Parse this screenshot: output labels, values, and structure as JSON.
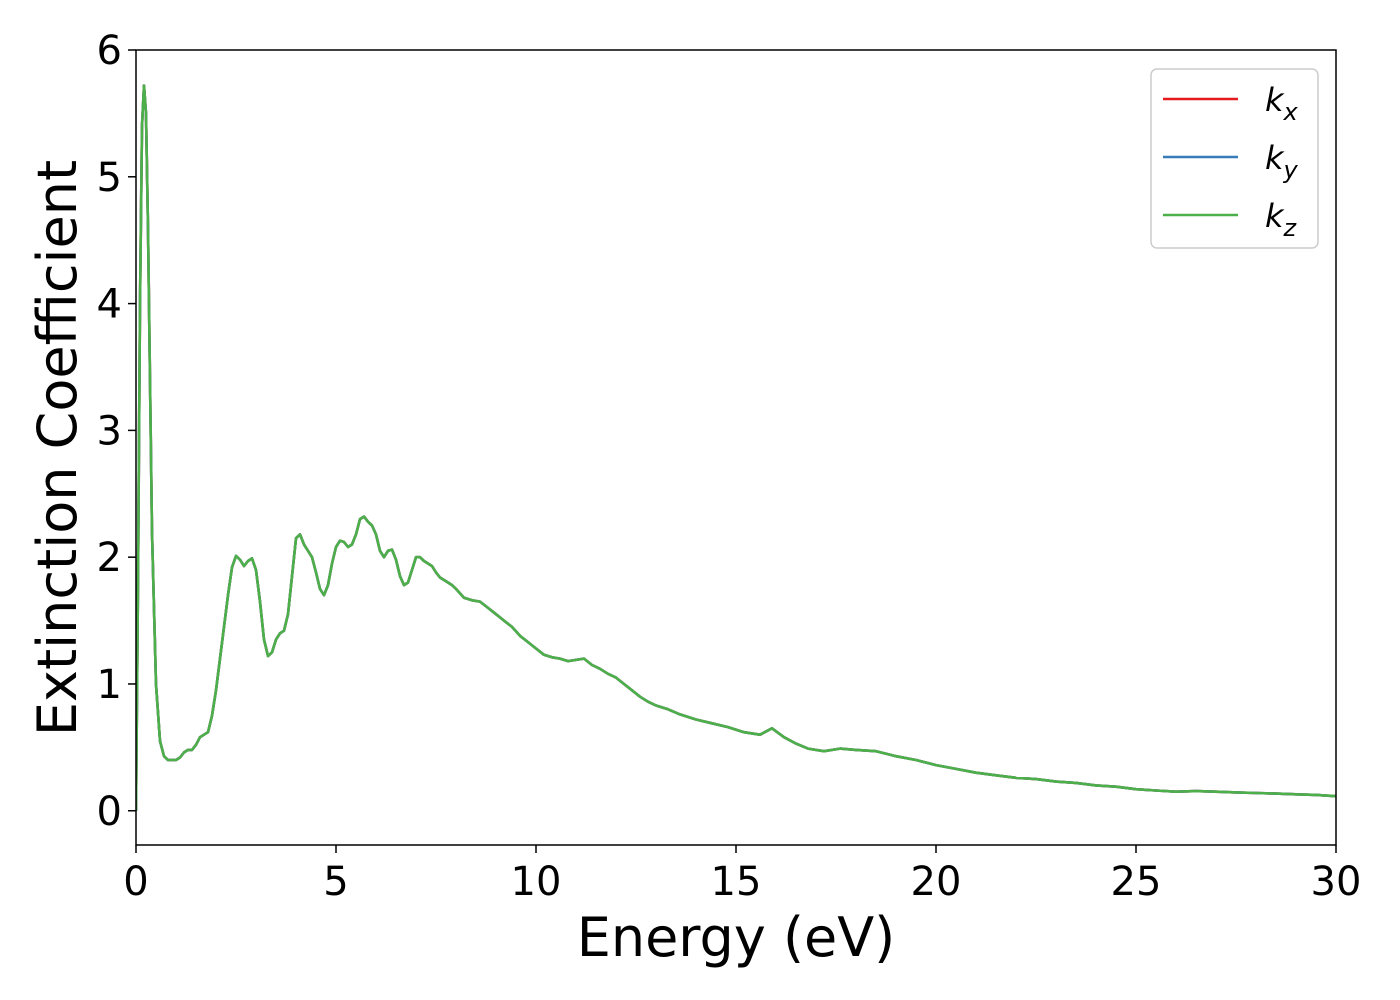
{
  "chart_data": {
    "type": "line",
    "xlabel": "Energy (eV)",
    "ylabel": "Extinction Coefficient",
    "xlim": [
      0,
      30
    ],
    "ylim": [
      -0.27,
      6.0
    ],
    "xticks": [
      "0",
      "5",
      "10",
      "15",
      "20",
      "25",
      "30"
    ],
    "yticks": [
      "0",
      "1",
      "2",
      "3",
      "4",
      "5",
      "6"
    ],
    "grid": false,
    "legend_position": "top-right",
    "series": [
      {
        "name": "k",
        "subscript": "x",
        "color": "#e41a1c"
      },
      {
        "name": "k",
        "subscript": "y",
        "color": "#377eb8"
      },
      {
        "name": "k",
        "subscript": "z",
        "color": "#4daf4a"
      }
    ],
    "shared_curve": {
      "x": [
        0,
        0.05,
        0.1,
        0.15,
        0.2,
        0.25,
        0.3,
        0.35,
        0.4,
        0.5,
        0.6,
        0.7,
        0.8,
        0.9,
        1.0,
        1.1,
        1.2,
        1.3,
        1.4,
        1.5,
        1.6,
        1.7,
        1.8,
        1.9,
        2.0,
        2.1,
        2.2,
        2.3,
        2.4,
        2.5,
        2.6,
        2.7,
        2.8,
        2.9,
        3.0,
        3.1,
        3.2,
        3.3,
        3.4,
        3.5,
        3.6,
        3.7,
        3.8,
        3.9,
        4.0,
        4.1,
        4.2,
        4.3,
        4.4,
        4.5,
        4.6,
        4.7,
        4.8,
        4.9,
        5.0,
        5.1,
        5.2,
        5.3,
        5.4,
        5.5,
        5.6,
        5.7,
        5.8,
        5.9,
        6.0,
        6.1,
        6.2,
        6.3,
        6.4,
        6.5,
        6.6,
        6.7,
        6.8,
        6.9,
        7.0,
        7.1,
        7.2,
        7.3,
        7.4,
        7.5,
        7.6,
        7.7,
        7.8,
        7.9,
        8.0,
        8.2,
        8.4,
        8.6,
        8.8,
        9.0,
        9.2,
        9.4,
        9.6,
        9.8,
        10.0,
        10.2,
        10.4,
        10.6,
        10.8,
        11.0,
        11.2,
        11.4,
        11.6,
        11.8,
        12.0,
        12.2,
        12.4,
        12.6,
        12.8,
        13.0,
        13.3,
        13.6,
        14.0,
        14.4,
        14.8,
        15.2,
        15.6,
        15.9,
        16.2,
        16.5,
        16.8,
        17.2,
        17.6,
        18.0,
        18.5,
        19.0,
        19.5,
        20.0,
        20.5,
        21.0,
        21.5,
        22.0,
        22.5,
        23.0,
        23.5,
        24.0,
        24.5,
        25.0,
        25.5,
        26.0,
        26.5,
        27.0,
        27.5,
        28.0,
        28.5,
        29.0,
        29.5,
        30.0
      ],
      "y": [
        0.0,
        1.8,
        4.0,
        5.4,
        5.72,
        5.5,
        4.6,
        3.4,
        2.2,
        1.0,
        0.55,
        0.43,
        0.4,
        0.4,
        0.4,
        0.42,
        0.46,
        0.48,
        0.48,
        0.52,
        0.58,
        0.6,
        0.62,
        0.75,
        0.95,
        1.2,
        1.45,
        1.7,
        1.92,
        2.01,
        1.98,
        1.93,
        1.97,
        1.99,
        1.9,
        1.65,
        1.35,
        1.22,
        1.25,
        1.35,
        1.4,
        1.42,
        1.55,
        1.85,
        2.15,
        2.18,
        2.1,
        2.05,
        2.0,
        1.88,
        1.75,
        1.7,
        1.78,
        1.95,
        2.08,
        2.13,
        2.12,
        2.08,
        2.1,
        2.18,
        2.3,
        2.32,
        2.28,
        2.25,
        2.18,
        2.05,
        2.0,
        2.05,
        2.06,
        1.98,
        1.85,
        1.78,
        1.8,
        1.9,
        2.0,
        2.0,
        1.97,
        1.95,
        1.93,
        1.88,
        1.84,
        1.82,
        1.8,
        1.78,
        1.75,
        1.68,
        1.66,
        1.65,
        1.6,
        1.55,
        1.5,
        1.45,
        1.38,
        1.33,
        1.28,
        1.23,
        1.21,
        1.2,
        1.18,
        1.19,
        1.2,
        1.15,
        1.12,
        1.08,
        1.05,
        1.0,
        0.95,
        0.9,
        0.86,
        0.83,
        0.8,
        0.76,
        0.72,
        0.69,
        0.66,
        0.62,
        0.6,
        0.65,
        0.58,
        0.53,
        0.49,
        0.47,
        0.49,
        0.48,
        0.47,
        0.43,
        0.4,
        0.36,
        0.33,
        0.3,
        0.28,
        0.26,
        0.25,
        0.23,
        0.22,
        0.2,
        0.19,
        0.17,
        0.16,
        0.15,
        0.155,
        0.15,
        0.145,
        0.14,
        0.135,
        0.13,
        0.125,
        0.115
      ]
    }
  }
}
